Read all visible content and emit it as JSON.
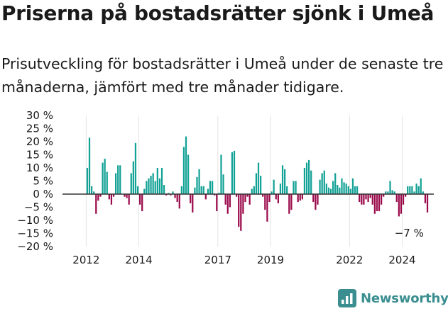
{
  "title": "Priserna på bostadsrätter sjönk i Umeå",
  "subtitle": "Prisutveckling för bostadsrätter i Umeå under de senaste tre månaderna, jämfört med tre månader tidigare.",
  "brand": {
    "name": "Newsworthy",
    "icon": "chart-bars-icon"
  },
  "colors": {
    "positive": "#12a195",
    "negative": "#9b0a4b",
    "axis": "#333333",
    "grid": "#e3e3e3"
  },
  "chart_data": {
    "type": "bar",
    "y_ticks": [
      30,
      25,
      20,
      15,
      10,
      5,
      0,
      -5,
      -10,
      -15,
      -20
    ],
    "y_tick_labels": [
      "30 %",
      "25 %",
      "20 %",
      "15 %",
      "10 %",
      "5 %",
      "0 %",
      "−5 %",
      "−10 %",
      "−15 %",
      "−20 %"
    ],
    "ylim": [
      -20,
      30
    ],
    "x_ticks": [
      2012,
      2014,
      2017,
      2019,
      2022,
      2024
    ],
    "x_range": [
      2011.1,
      2025.2
    ],
    "grid": "vertical",
    "annotation": {
      "text": "−7 %",
      "x": 2024.75,
      "y": -7
    },
    "series": [
      {
        "frequency": "monthly",
        "start": "2012-01",
        "values": [
          10,
          21.5,
          3,
          1,
          -7.5,
          -2.5,
          -1,
          12,
          13.5,
          8.5,
          -2,
          -4,
          -1,
          8,
          11,
          11,
          0,
          -1,
          -1.5,
          -4,
          8,
          12.5,
          19.5,
          3,
          -4,
          -6.5,
          2,
          5,
          6,
          7,
          8,
          5,
          10,
          6,
          10,
          3.5,
          -0.5,
          0.5,
          -0.5,
          1,
          -1.5,
          -3,
          -5.5,
          3,
          18,
          22,
          15,
          -3.5,
          -7,
          2.5,
          6.5,
          9.5,
          3,
          3,
          -2,
          2,
          5,
          5,
          -0.5,
          -6.5,
          0.5,
          15,
          7.5,
          -4,
          -7.5,
          -5,
          16,
          16.5,
          -1,
          -12.5,
          -14,
          -7.5,
          -3,
          -1,
          -4,
          2,
          3,
          8,
          12,
          7,
          -1,
          -6,
          -10.5,
          -3,
          1,
          5.5,
          -2,
          -3.5,
          4,
          11,
          9.5,
          3,
          -7.5,
          -6,
          5,
          5,
          -3,
          -2.5,
          -2,
          10,
          12,
          13,
          9,
          -3,
          -6,
          -4,
          5.5,
          8,
          9,
          4,
          2.5,
          2,
          5,
          8,
          3.5,
          2.5,
          6,
          4.5,
          4,
          3,
          2,
          6,
          3,
          3,
          -3,
          -4,
          -4,
          -2,
          -3,
          -1.5,
          -4,
          -7.5,
          -6.5,
          -6.5,
          -4,
          -1,
          1,
          1,
          5,
          1.5,
          1,
          -3,
          -8.5,
          -7.5,
          -4,
          -1,
          3,
          3,
          3,
          1,
          4,
          3,
          6,
          1,
          -3.5,
          -7
        ]
      }
    ]
  }
}
